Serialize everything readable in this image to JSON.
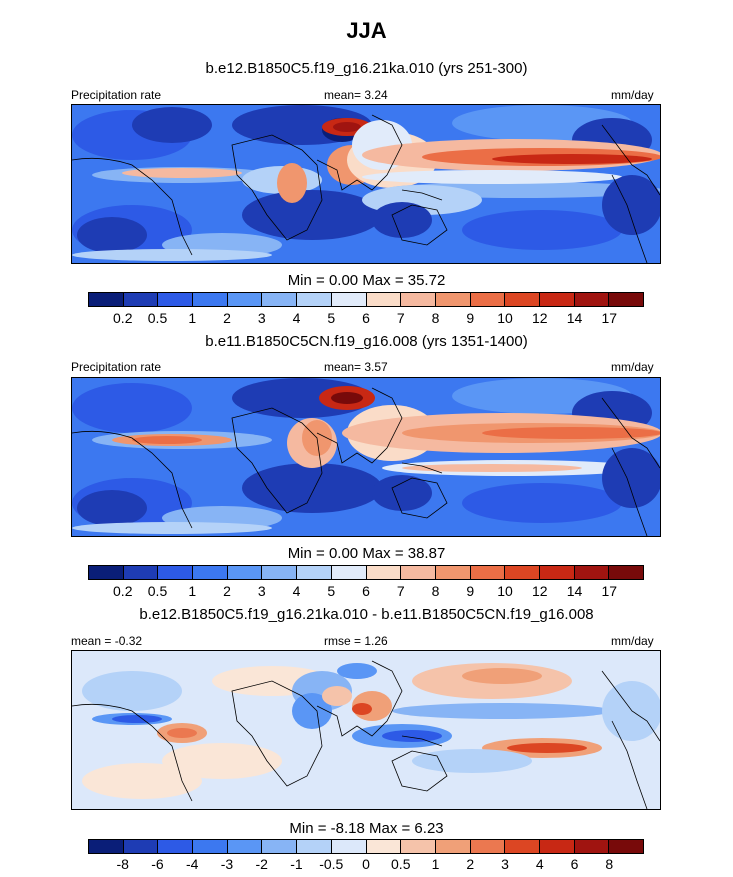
{
  "figure": {
    "title": "JJA"
  },
  "panels": [
    {
      "title": "b.e12.B1850C5.f19_g16.21ka.010 (yrs 251-300)",
      "left_label": "Precipitation rate",
      "center_label": "mean=   3.24",
      "right_label": "mm/day",
      "minmax": "Min =   0.00 Max =  35.72"
    },
    {
      "title": "b.e11.B1850C5CN.f19_g16.008 (yrs 1351-1400)",
      "left_label": "Precipitation rate",
      "center_label": "mean=   3.57",
      "right_label": "mm/day",
      "minmax": "Min =   0.00 Max =  38.87"
    },
    {
      "title": "b.e12.B1850C5.f19_g16.21ka.010 - b.e11.B1850C5CN.f19_g16.008",
      "left_label": "mean =  -0.32",
      "center_label": "rmse =   1.26",
      "right_label": "mm/day",
      "minmax": "Min =  -8.18 Max =   6.23"
    }
  ],
  "colorbars": {
    "precip_colors": [
      "#0a1e78",
      "#1e3cb4",
      "#2d5ae6",
      "#3c78f0",
      "#5a96f5",
      "#87b4f5",
      "#b4d2f8",
      "#e1ebfa",
      "#fadcc8",
      "#f5b9a0",
      "#f0966e",
      "#eb6e46",
      "#dc4623",
      "#c82814",
      "#a01410",
      "#780a0a"
    ],
    "precip_ticks": [
      "0.2",
      "0.5",
      "1",
      "2",
      "3",
      "4",
      "5",
      "6",
      "7",
      "8",
      "9",
      "10",
      "12",
      "14",
      "17"
    ],
    "diff_colors": [
      "#0a1e78",
      "#1e3cb4",
      "#2d5ae6",
      "#3c78f0",
      "#5a96f5",
      "#87b4f5",
      "#b4d2f8",
      "#dce8fa",
      "#fae6d7",
      "#f5c3aa",
      "#f0a078",
      "#eb7850",
      "#dc4623",
      "#c82814",
      "#a01410",
      "#780a0a"
    ],
    "diff_ticks": [
      "-8",
      "-6",
      "-4",
      "-3",
      "-2",
      "-1",
      "-0.5",
      "0",
      "0.5",
      "1",
      "2",
      "3",
      "4",
      "6",
      "8"
    ]
  },
  "chart_data": [
    {
      "type": "heatmap",
      "title": "b.e12.B1850C5.f19_g16.21ka.010 (yrs 251-300)",
      "variable": "Precipitation rate",
      "units": "mm/day",
      "mean": 3.24,
      "min": 0.0,
      "max": 35.72,
      "levels": [
        0.2,
        0.5,
        1,
        2,
        3,
        4,
        5,
        6,
        7,
        8,
        9,
        10,
        12,
        14,
        17
      ]
    },
    {
      "type": "heatmap",
      "title": "b.e11.B1850C5CN.f19_g16.008 (yrs 1351-1400)",
      "variable": "Precipitation rate",
      "units": "mm/day",
      "mean": 3.57,
      "min": 0.0,
      "max": 38.87,
      "levels": [
        0.2,
        0.5,
        1,
        2,
        3,
        4,
        5,
        6,
        7,
        8,
        9,
        10,
        12,
        14,
        17
      ]
    },
    {
      "type": "heatmap",
      "title": "b.e12.B1850C5.f19_g16.21ka.010 - b.e11.B1850C5CN.f19_g16.008",
      "units": "mm/day",
      "mean": -0.32,
      "rmse": 1.26,
      "min": -8.18,
      "max": 6.23,
      "levels": [
        -8,
        -6,
        -4,
        -3,
        -2,
        -1,
        -0.5,
        0,
        0.5,
        1,
        2,
        3,
        4,
        6,
        8
      ]
    }
  ]
}
